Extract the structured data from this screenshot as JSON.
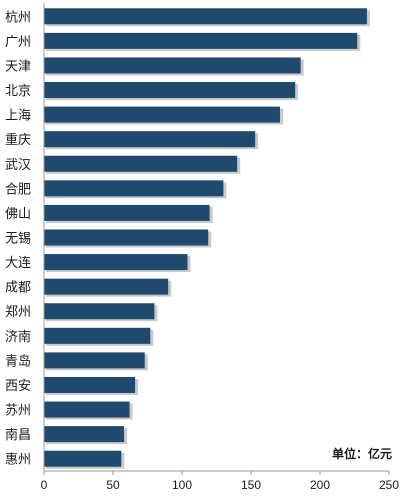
{
  "chart_data": {
    "type": "bar",
    "orientation": "horizontal",
    "categories": [
      "杭州",
      "广州",
      "天津",
      "北京",
      "上海",
      "重庆",
      "武汉",
      "合肥",
      "佛山",
      "无锡",
      "大连",
      "成都",
      "郑州",
      "济南",
      "青岛",
      "西安",
      "苏州",
      "南昌",
      "惠州"
    ],
    "values": [
      234,
      227,
      186,
      182,
      171,
      153,
      140,
      130,
      120,
      119,
      104,
      90,
      80,
      77,
      73,
      66,
      62,
      58,
      56
    ],
    "xlim": [
      0,
      250
    ],
    "xticks": [
      "0",
      "50",
      "100",
      "150",
      "200",
      "250"
    ],
    "unit_label": "单位：亿元",
    "bar_color": "#1f4a6e",
    "grid": false,
    "legend": "none"
  }
}
